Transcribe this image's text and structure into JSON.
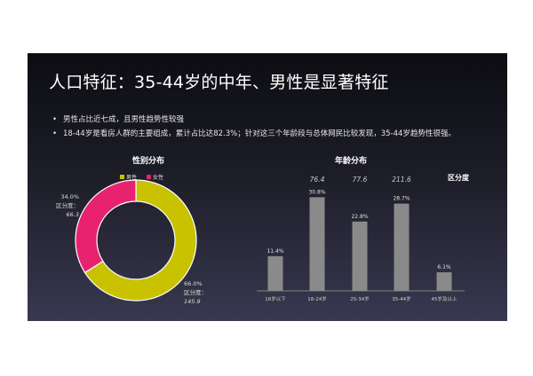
{
  "title": "人口特征：35-44岁的中年、男性是显著特征",
  "bullets": [
    "男性占比近七成，且男性趋势性较强",
    "18-44岁是看房人群的主要组成，累计占比达82.3%；针对这三个年龄段与总体网民比较发现，35-44岁趋势性很强。"
  ],
  "colors": {
    "male": "#c8c200",
    "female": "#e8226e",
    "bar": "#8a8a8a"
  },
  "chart_data": [
    {
      "type": "pie",
      "title": "性别分布",
      "legend": [
        "男性",
        "女性"
      ],
      "categories": [
        "男性",
        "女性"
      ],
      "values": [
        66.0,
        34.0
      ],
      "value_labels": [
        "66.0%",
        "34.0%"
      ],
      "annotation_label": "区分度：",
      "annotations": [
        "145.9",
        "66.3"
      ]
    },
    {
      "type": "bar",
      "title": "年龄分布",
      "categories": [
        "18岁以下",
        "18-24岁",
        "25-34岁",
        "35-44岁",
        "45岁及以上"
      ],
      "values": [
        11.4,
        30.8,
        22.8,
        28.7,
        6.1
      ],
      "value_labels": [
        "11.4%",
        "30.8%",
        "22.8%",
        "28.7%",
        "6.1%"
      ],
      "index_label": "区分度",
      "index_values": [
        "76.4",
        "77.6",
        "211.6"
      ],
      "ylim": [
        0,
        35
      ]
    }
  ]
}
